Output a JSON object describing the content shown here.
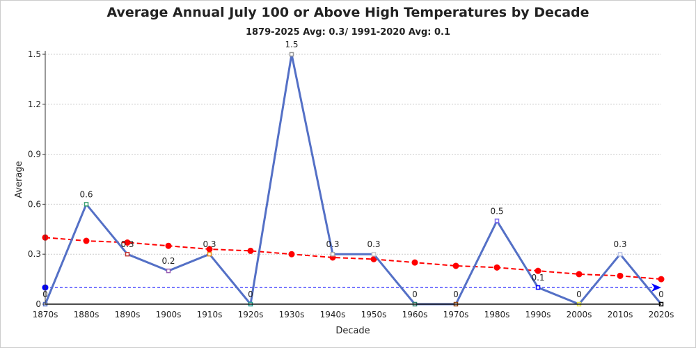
{
  "chart_data": {
    "type": "line",
    "title": "Average Annual July 100 or Above High Temperatures by Decade",
    "subtitle": "1879-2025 Avg: 0.3/ 1991-2020 Avg: 0.1",
    "xlabel": "Decade",
    "ylabel": "Average",
    "ylim": [
      0,
      1.5
    ],
    "yticks": [
      "0",
      "0.3",
      "0.6",
      "0.9",
      "1.2",
      "1.5"
    ],
    "grid": true,
    "categories": [
      "1870s",
      "1880s",
      "1890s",
      "1900s",
      "1910s",
      "1920s",
      "1930s",
      "1940s",
      "1950s",
      "1960s",
      "1970s",
      "1980s",
      "1990s",
      "2000s",
      "2010s",
      "2020s"
    ],
    "series": [
      {
        "values": [
          0,
          0.6,
          0.3,
          0.2,
          0.3,
          0,
          1.5,
          0.3,
          0.3,
          0,
          0,
          0.5,
          0.1,
          0,
          0.3,
          0
        ],
        "color": "#5470c6",
        "marker_colors": [
          "#5470c6",
          "#3ba272",
          "#c23531",
          "#9a60b4",
          "#e98f1a",
          "#1f9c8f",
          "#999999",
          "#aaaaaa",
          "#cccccc",
          "#2f7d6d",
          "#8b4513",
          "#7b68ee",
          "#0000ff",
          "#e6e64d",
          "#c0c8e8",
          "#000000"
        ]
      },
      {
        "type": "trend",
        "values": [
          0.4,
          0.38,
          0.37,
          0.35,
          0.33,
          0.32,
          0.3,
          0.28,
          0.27,
          0.25,
          0.23,
          0.22,
          0.2,
          0.18,
          0.17,
          0.15
        ],
        "color": "#ff0000",
        "dashed": true
      },
      {
        "type": "reference",
        "value": 0.1,
        "color": "#0000ff",
        "dashed": true
      }
    ]
  }
}
